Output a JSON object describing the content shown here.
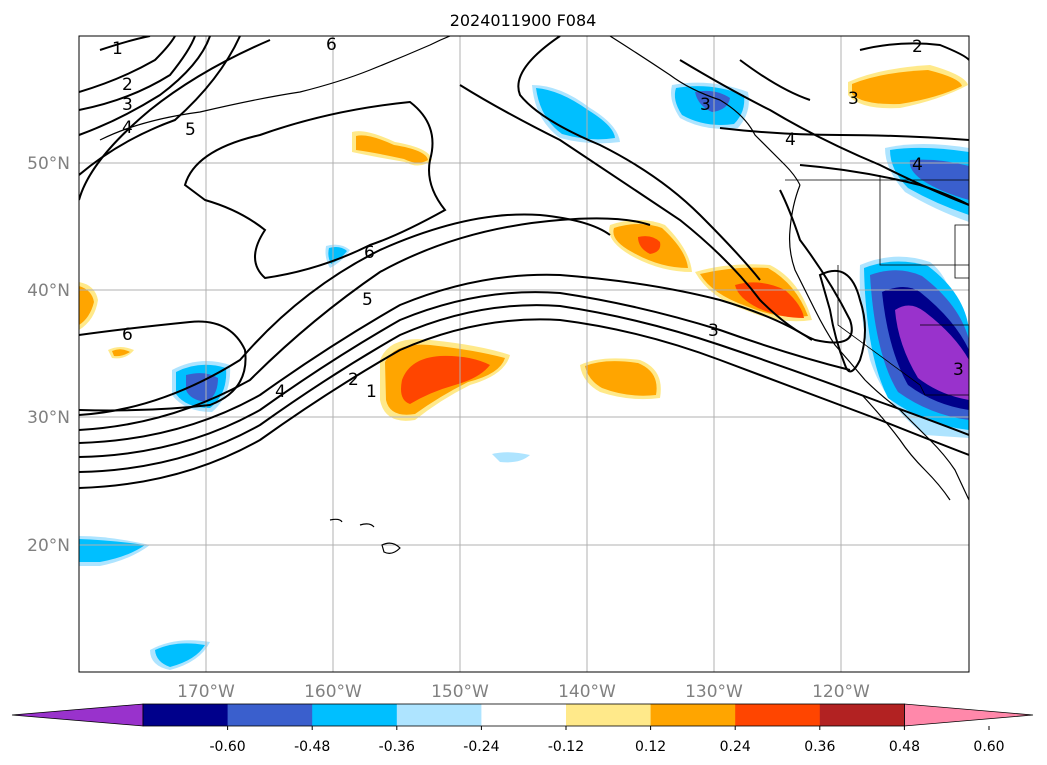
{
  "title": "2024011900 F084",
  "map": {
    "lat_labels": [
      {
        "text": "50°N",
        "value": 50
      },
      {
        "text": "40°N",
        "value": 40
      },
      {
        "text": "30°N",
        "value": 30
      },
      {
        "text": "20°N",
        "value": 20
      }
    ],
    "lon_labels": [
      {
        "text": "170°W",
        "value": -170
      },
      {
        "text": "160°W",
        "value": -160
      },
      {
        "text": "150°W",
        "value": -150
      },
      {
        "text": "140°W",
        "value": -140
      },
      {
        "text": "130°W",
        "value": -130
      },
      {
        "text": "120°W",
        "value": -120
      }
    ],
    "extent": {
      "lon_min": -180,
      "lon_max": -110,
      "lat_min": 10,
      "lat_max": 60
    },
    "contour_labels": [
      "1",
      "2",
      "3",
      "4",
      "5",
      "6"
    ]
  },
  "colorbar": {
    "colors": [
      "#9932cc",
      "#00008b",
      "#3a5fcd",
      "#00bfff",
      "#aee4ff",
      "#ffffff",
      "#ffe98a",
      "#ffa500",
      "#ff4500",
      "#b22222",
      "#ff88aa"
    ],
    "labels": [
      "-0.60",
      "-0.48",
      "-0.36",
      "-0.24",
      "-0.12",
      "0.12",
      "0.24",
      "0.36",
      "0.48",
      "0.60"
    ],
    "extend": "both"
  }
}
